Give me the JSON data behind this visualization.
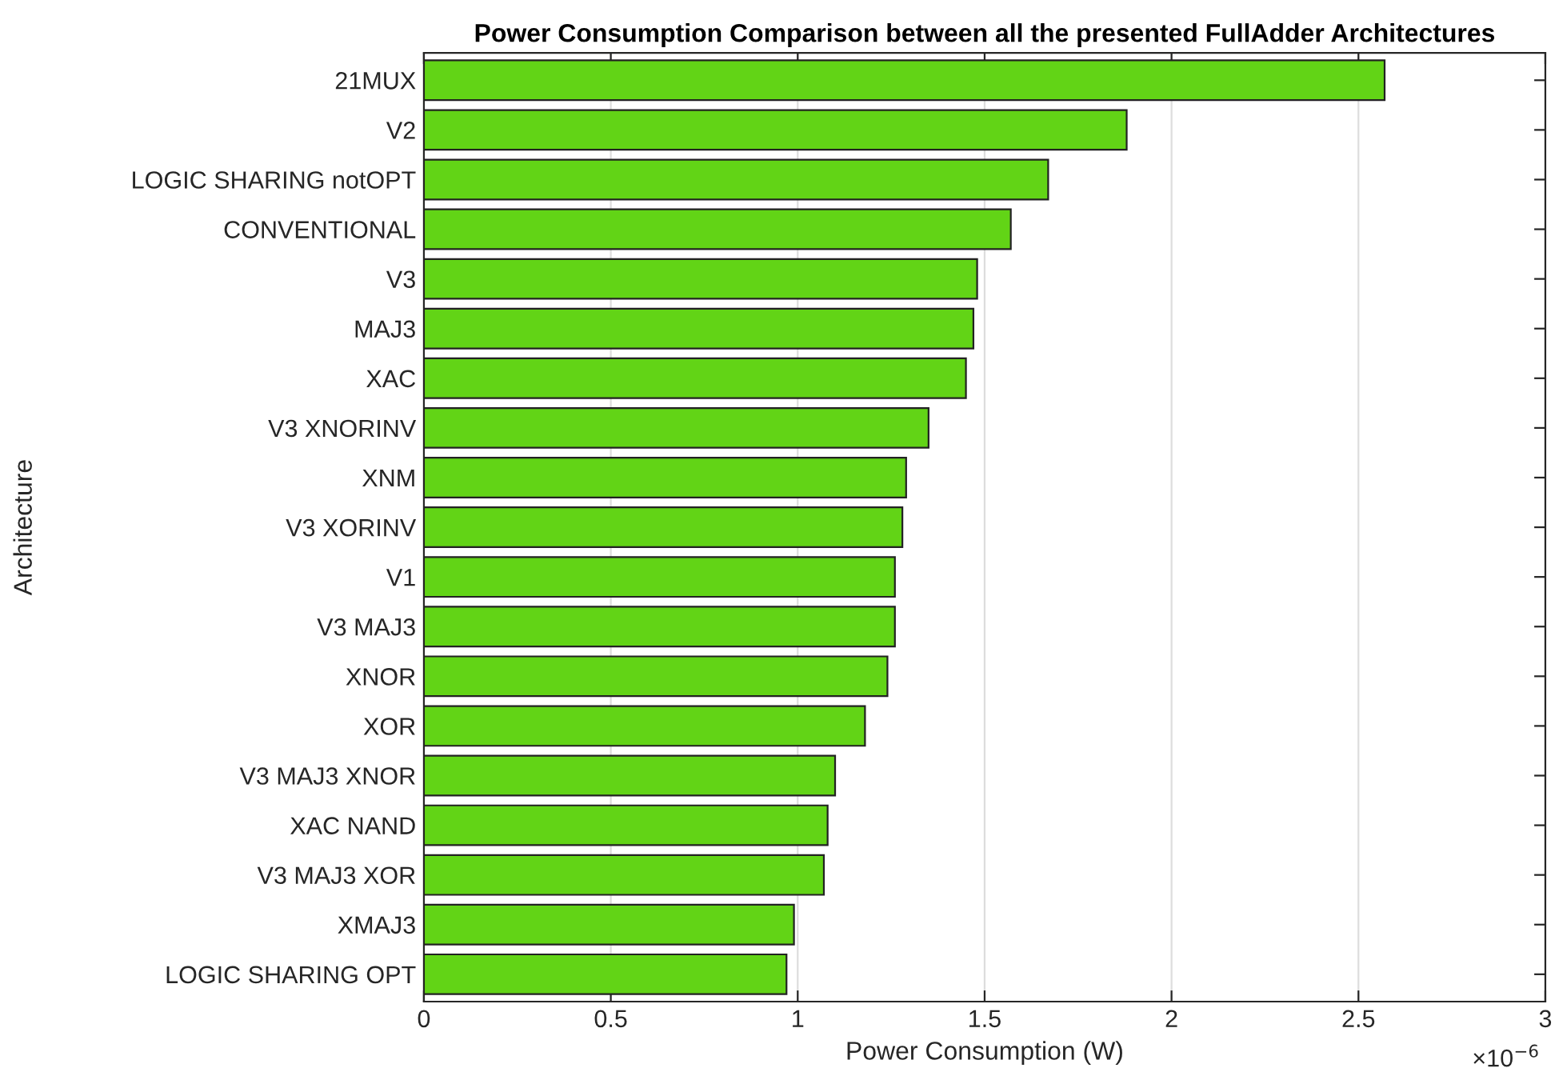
{
  "chart_data": {
    "type": "bar",
    "orientation": "horizontal",
    "title": "Power Consumption Comparison between all the presented FullAdder Architectures",
    "xlabel": "Power Consumption (W)",
    "ylabel": "Architecture",
    "categories": [
      "21MUX",
      "V2",
      "LOGIC SHARING notOPT",
      "CONVENTIONAL",
      "V3",
      "MAJ3",
      "XAC",
      "V3 XNORINV",
      "XNM",
      "V3 XORINV",
      "V1",
      "V3 MAJ3",
      "XNOR",
      "XOR",
      "V3 MAJ3 XNOR",
      "XAC NAND",
      "V3 MAJ3 XOR",
      "XMAJ3",
      "LOGIC SHARING OPT"
    ],
    "values": [
      2.57,
      1.88,
      1.67,
      1.57,
      1.48,
      1.47,
      1.45,
      1.35,
      1.29,
      1.28,
      1.26,
      1.26,
      1.24,
      1.18,
      1.1,
      1.08,
      1.07,
      0.99,
      0.97
    ],
    "color": "#62d416",
    "xlim": [
      0,
      3
    ],
    "xticks": [
      0,
      0.5,
      1,
      1.5,
      2,
      2.5,
      3
    ],
    "grid": "x",
    "annotations": [
      "×10$^{−6}$"
    ]
  }
}
